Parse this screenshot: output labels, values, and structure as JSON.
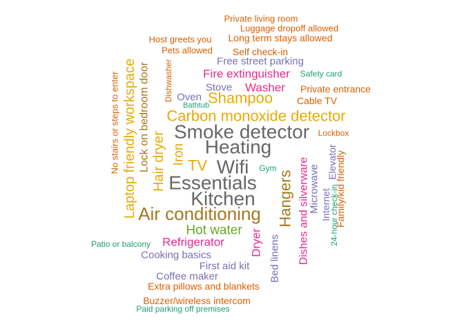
{
  "chart_data": {
    "type": "wordcloud",
    "title": "",
    "colors": {
      "teal": "#1b9e77",
      "orange": "#d95f02",
      "purple": "#7570b3",
      "magenta": "#e7298a",
      "green": "#66a61e",
      "gold": "#e6ab02",
      "brown": "#a6761d",
      "gray": "#666666"
    },
    "words": [
      {
        "text": "Smoke detector",
        "weight": 10,
        "color": "gray",
        "orientation": "horizontal"
      },
      {
        "text": "Heating",
        "weight": 10,
        "color": "gray",
        "orientation": "horizontal"
      },
      {
        "text": "Wifi",
        "weight": 10,
        "color": "gray",
        "orientation": "horizontal"
      },
      {
        "text": "Essentials",
        "weight": 10,
        "color": "gray",
        "orientation": "horizontal"
      },
      {
        "text": "Kitchen",
        "weight": 10,
        "color": "gray",
        "orientation": "horizontal"
      },
      {
        "text": "Air conditioning",
        "weight": 9,
        "color": "brown",
        "orientation": "horizontal"
      },
      {
        "text": "Carbon monoxide detector",
        "weight": 8,
        "color": "gold",
        "orientation": "horizontal"
      },
      {
        "text": "TV",
        "weight": 8,
        "color": "gold",
        "orientation": "horizontal"
      },
      {
        "text": "Shampoo",
        "weight": 8,
        "color": "gold",
        "orientation": "horizontal"
      },
      {
        "text": "Laptop friendly workspace",
        "weight": 8,
        "color": "gold",
        "orientation": "vertical"
      },
      {
        "text": "Hangers",
        "weight": 8,
        "color": "brown",
        "orientation": "vertical"
      },
      {
        "text": "Hair dryer",
        "weight": 7,
        "color": "gold",
        "orientation": "vertical"
      },
      {
        "text": "Iron",
        "weight": 7,
        "color": "gold",
        "orientation": "vertical"
      },
      {
        "text": "Hot water",
        "weight": 6,
        "color": "green",
        "orientation": "horizontal"
      },
      {
        "text": "Fire extinguisher",
        "weight": 5,
        "color": "magenta",
        "orientation": "horizontal"
      },
      {
        "text": "Washer",
        "weight": 5,
        "color": "magenta",
        "orientation": "horizontal"
      },
      {
        "text": "Refrigerator",
        "weight": 5,
        "color": "magenta",
        "orientation": "horizontal"
      },
      {
        "text": "Dryer",
        "weight": 5,
        "color": "magenta",
        "orientation": "vertical"
      },
      {
        "text": "Dishes and silverware",
        "weight": 5,
        "color": "magenta",
        "orientation": "vertical"
      },
      {
        "text": "Lock on bedroom door",
        "weight": 5,
        "color": "brown",
        "orientation": "vertical"
      },
      {
        "text": "Free street parking",
        "weight": 4,
        "color": "purple",
        "orientation": "horizontal"
      },
      {
        "text": "Stove",
        "weight": 4,
        "color": "purple",
        "orientation": "horizontal"
      },
      {
        "text": "Oven",
        "weight": 4,
        "color": "purple",
        "orientation": "horizontal"
      },
      {
        "text": "Cooking basics",
        "weight": 4,
        "color": "purple",
        "orientation": "horizontal"
      },
      {
        "text": "First aid kit",
        "weight": 4,
        "color": "purple",
        "orientation": "horizontal"
      },
      {
        "text": "Coffee maker",
        "weight": 4,
        "color": "purple",
        "orientation": "horizontal"
      },
      {
        "text": "Microwave",
        "weight": 4,
        "color": "purple",
        "orientation": "vertical"
      },
      {
        "text": "Bed linens",
        "weight": 4,
        "color": "purple",
        "orientation": "vertical"
      },
      {
        "text": "Internet",
        "weight": 4,
        "color": "purple",
        "orientation": "vertical"
      },
      {
        "text": "Elevator",
        "weight": 4,
        "color": "purple",
        "orientation": "vertical"
      },
      {
        "text": "Cable TV",
        "weight": 3,
        "color": "orange",
        "orientation": "horizontal"
      },
      {
        "text": "Private entrance",
        "weight": 3,
        "color": "orange",
        "orientation": "horizontal"
      },
      {
        "text": "Self check-in",
        "weight": 3,
        "color": "orange",
        "orientation": "horizontal"
      },
      {
        "text": "Long term stays allowed",
        "weight": 3,
        "color": "orange",
        "orientation": "horizontal"
      },
      {
        "text": "Luggage dropoff allowed",
        "weight": 3,
        "color": "orange",
        "orientation": "horizontal"
      },
      {
        "text": "Private living room",
        "weight": 3,
        "color": "orange",
        "orientation": "horizontal"
      },
      {
        "text": "Host greets you",
        "weight": 3,
        "color": "orange",
        "orientation": "horizontal"
      },
      {
        "text": "Pets allowed",
        "weight": 3,
        "color": "orange",
        "orientation": "horizontal"
      },
      {
        "text": "Extra pillows and blankets",
        "weight": 3,
        "color": "orange",
        "orientation": "horizontal"
      },
      {
        "text": "Buzzer/wireless intercom",
        "weight": 3,
        "color": "orange",
        "orientation": "horizontal"
      },
      {
        "text": "Lockbox",
        "weight": 3,
        "color": "orange",
        "orientation": "horizontal"
      },
      {
        "text": "Family/kid friendly",
        "weight": 3,
        "color": "orange",
        "orientation": "vertical"
      },
      {
        "text": "No stairs or steps to enter",
        "weight": 3,
        "color": "orange",
        "orientation": "vertical"
      },
      {
        "text": "Dishwasher",
        "weight": 3,
        "color": "orange",
        "orientation": "vertical"
      },
      {
        "text": "Safety card",
        "weight": 2,
        "color": "teal",
        "orientation": "horizontal"
      },
      {
        "text": "Bathtub",
        "weight": 2,
        "color": "teal",
        "orientation": "horizontal"
      },
      {
        "text": "Gym",
        "weight": 2,
        "color": "teal",
        "orientation": "horizontal"
      },
      {
        "text": "Patio or balcony",
        "weight": 2,
        "color": "teal",
        "orientation": "horizontal"
      },
      {
        "text": "Paid parking off premises",
        "weight": 2,
        "color": "teal",
        "orientation": "horizontal"
      },
      {
        "text": "24-hour check-in",
        "weight": 2,
        "color": "teal",
        "orientation": "vertical"
      }
    ]
  }
}
